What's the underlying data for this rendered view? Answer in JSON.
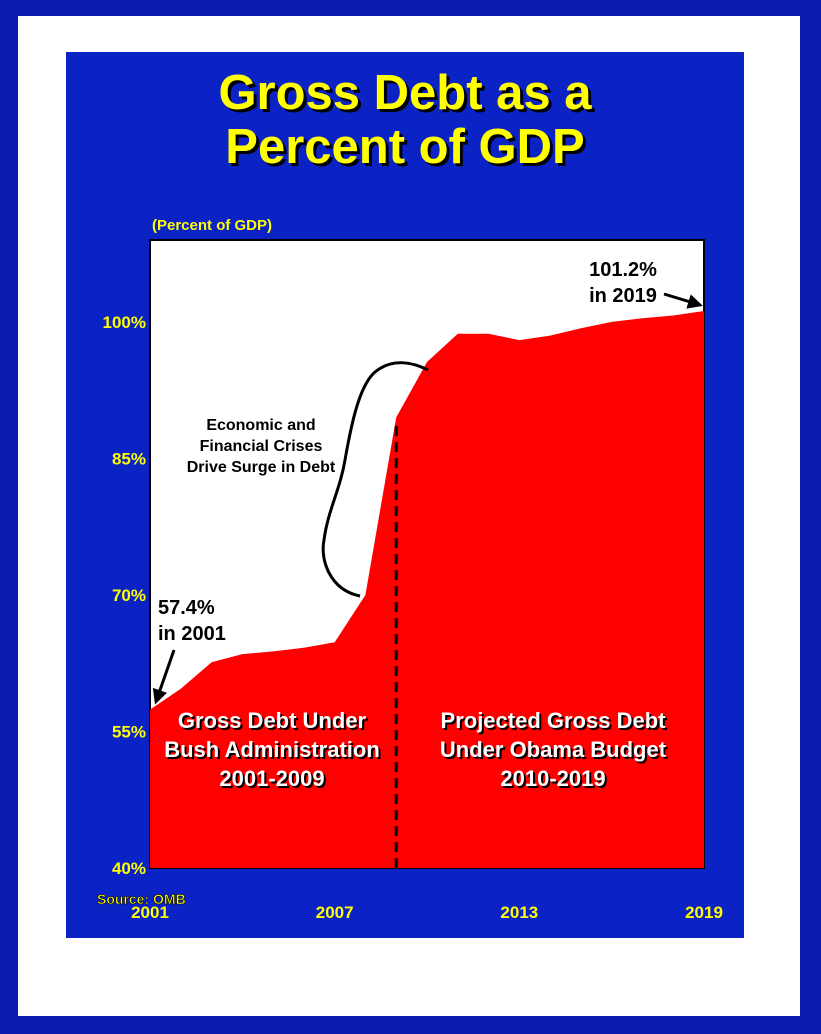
{
  "title_lines": [
    "Gross Debt as a",
    "Percent of GDP"
  ],
  "chart_data": {
    "type": "area",
    "ylabel": "(Percent of GDP)",
    "xlabel": "",
    "xlim": [
      2001,
      2019
    ],
    "ylim": [
      40,
      109
    ],
    "yticks": [
      40,
      55,
      70,
      85,
      100
    ],
    "ytick_labels": [
      "40%",
      "55%",
      "70%",
      "85%",
      "100%"
    ],
    "xticks": [
      2001,
      2007,
      2013,
      2019
    ],
    "xtick_labels": [
      "2001",
      "2007",
      "2013",
      "2019"
    ],
    "x": [
      2001,
      2002,
      2003,
      2004,
      2005,
      2006,
      2007,
      2008,
      2009,
      2010,
      2011,
      2012,
      2013,
      2014,
      2015,
      2016,
      2017,
      2018,
      2019
    ],
    "values": [
      57.4,
      59.7,
      62.6,
      63.5,
      63.8,
      64.2,
      64.8,
      70.0,
      89.5,
      95.6,
      98.7,
      98.7,
      98.0,
      98.5,
      99.3,
      100.0,
      100.4,
      100.7,
      101.2
    ],
    "divider_x": 2009,
    "fill_color": "#ff0000",
    "annotations": {
      "start": [
        "57.4%",
        "in 2001"
      ],
      "end": [
        "101.2%",
        "in 2019"
      ],
      "crisis": [
        "Economic and",
        "Financial Crises",
        "Drive Surge in Debt"
      ],
      "bush": [
        "Gross Debt Under",
        "Bush Administration",
        "2001-2009"
      ],
      "obama": [
        "Projected Gross Debt",
        "Under Obama Budget",
        "2010-2019"
      ]
    }
  },
  "source": "Source:  OMB",
  "colors": {
    "background": "#0b23c4",
    "title": "#ffff00",
    "area": "#ff0000"
  }
}
